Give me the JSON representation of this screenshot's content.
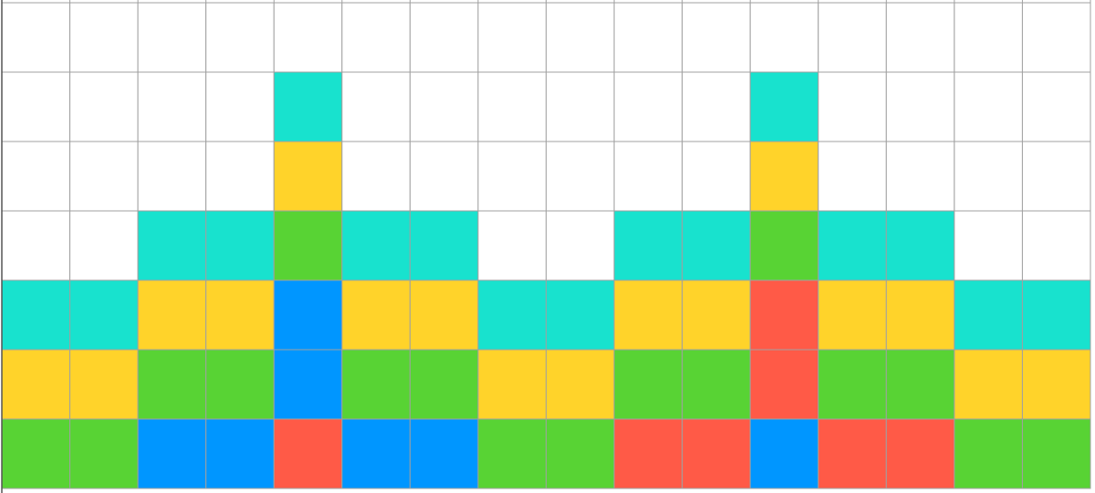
{
  "board": {
    "empty": "#ffffff",
    "line": "#a0a0a0",
    "rows": [
      [
        null,
        null,
        null,
        null,
        null,
        null,
        null,
        null,
        null,
        null,
        null,
        null,
        null,
        null,
        null,
        null
      ],
      [
        null,
        null,
        null,
        null,
        "#18e2ce",
        null,
        null,
        null,
        null,
        null,
        null,
        "#18e2ce",
        null,
        null,
        null,
        null
      ],
      [
        null,
        null,
        null,
        null,
        "#ffd32a",
        null,
        null,
        null,
        null,
        null,
        null,
        "#ffd32a",
        null,
        null,
        null,
        null
      ],
      [
        null,
        null,
        "#18e2ce",
        "#18e2ce",
        "#58d334",
        "#18e2ce",
        "#18e2ce",
        null,
        null,
        "#18e2ce",
        "#18e2ce",
        "#58d334",
        "#18e2ce",
        "#18e2ce",
        null,
        null
      ],
      [
        "#18e2ce",
        "#18e2ce",
        "#ffd32a",
        "#ffd32a",
        "#0096ff",
        "#ffd32a",
        "#ffd32a",
        "#18e2ce",
        "#18e2ce",
        "#ffd32a",
        "#ffd32a",
        "#ff5a47",
        "#ffd32a",
        "#ffd32a",
        "#18e2ce",
        "#18e2ce"
      ],
      [
        "#ffd32a",
        "#ffd32a",
        "#58d334",
        "#58d334",
        "#0096ff",
        "#58d334",
        "#58d334",
        "#ffd32a",
        "#ffd32a",
        "#58d334",
        "#58d334",
        "#ff5a47",
        "#58d334",
        "#58d334",
        "#ffd32a",
        "#ffd32a"
      ],
      [
        "#58d334",
        "#58d334",
        "#0096ff",
        "#0096ff",
        "#ff5a47",
        "#0096ff",
        "#0096ff",
        "#58d334",
        "#58d334",
        "#ff5a47",
        "#ff5a47",
        "#0096ff",
        "#ff5a47",
        "#ff5a47",
        "#58d334",
        "#58d334"
      ]
    ]
  }
}
